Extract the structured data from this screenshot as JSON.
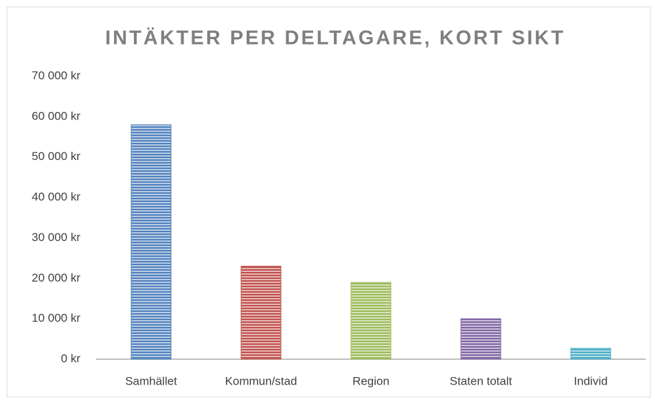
{
  "chart_data": {
    "type": "bar",
    "title": "INTÄKTER PER DELTAGARE, KORT SIKT",
    "categories": [
      "Samhället",
      "Kommun/stad",
      "Region",
      "Staten totalt",
      "Individ"
    ],
    "values": [
      58000,
      23000,
      19000,
      10000,
      2700
    ],
    "colors": [
      "#4f81bd",
      "#c0504d",
      "#9bbb59",
      "#8064a2",
      "#4bacc6"
    ],
    "ylim": [
      0,
      70000
    ],
    "yticks": [
      {
        "value": 0,
        "label": "0 kr"
      },
      {
        "value": 10000,
        "label": "10 000 kr"
      },
      {
        "value": 20000,
        "label": "20 000 kr"
      },
      {
        "value": 30000,
        "label": "30 000 kr"
      },
      {
        "value": 40000,
        "label": "40 000 kr"
      },
      {
        "value": 50000,
        "label": "50 000 kr"
      },
      {
        "value": 60000,
        "label": "60 000 kr"
      },
      {
        "value": 70000,
        "label": "70 000 kr"
      }
    ],
    "grid": false
  }
}
